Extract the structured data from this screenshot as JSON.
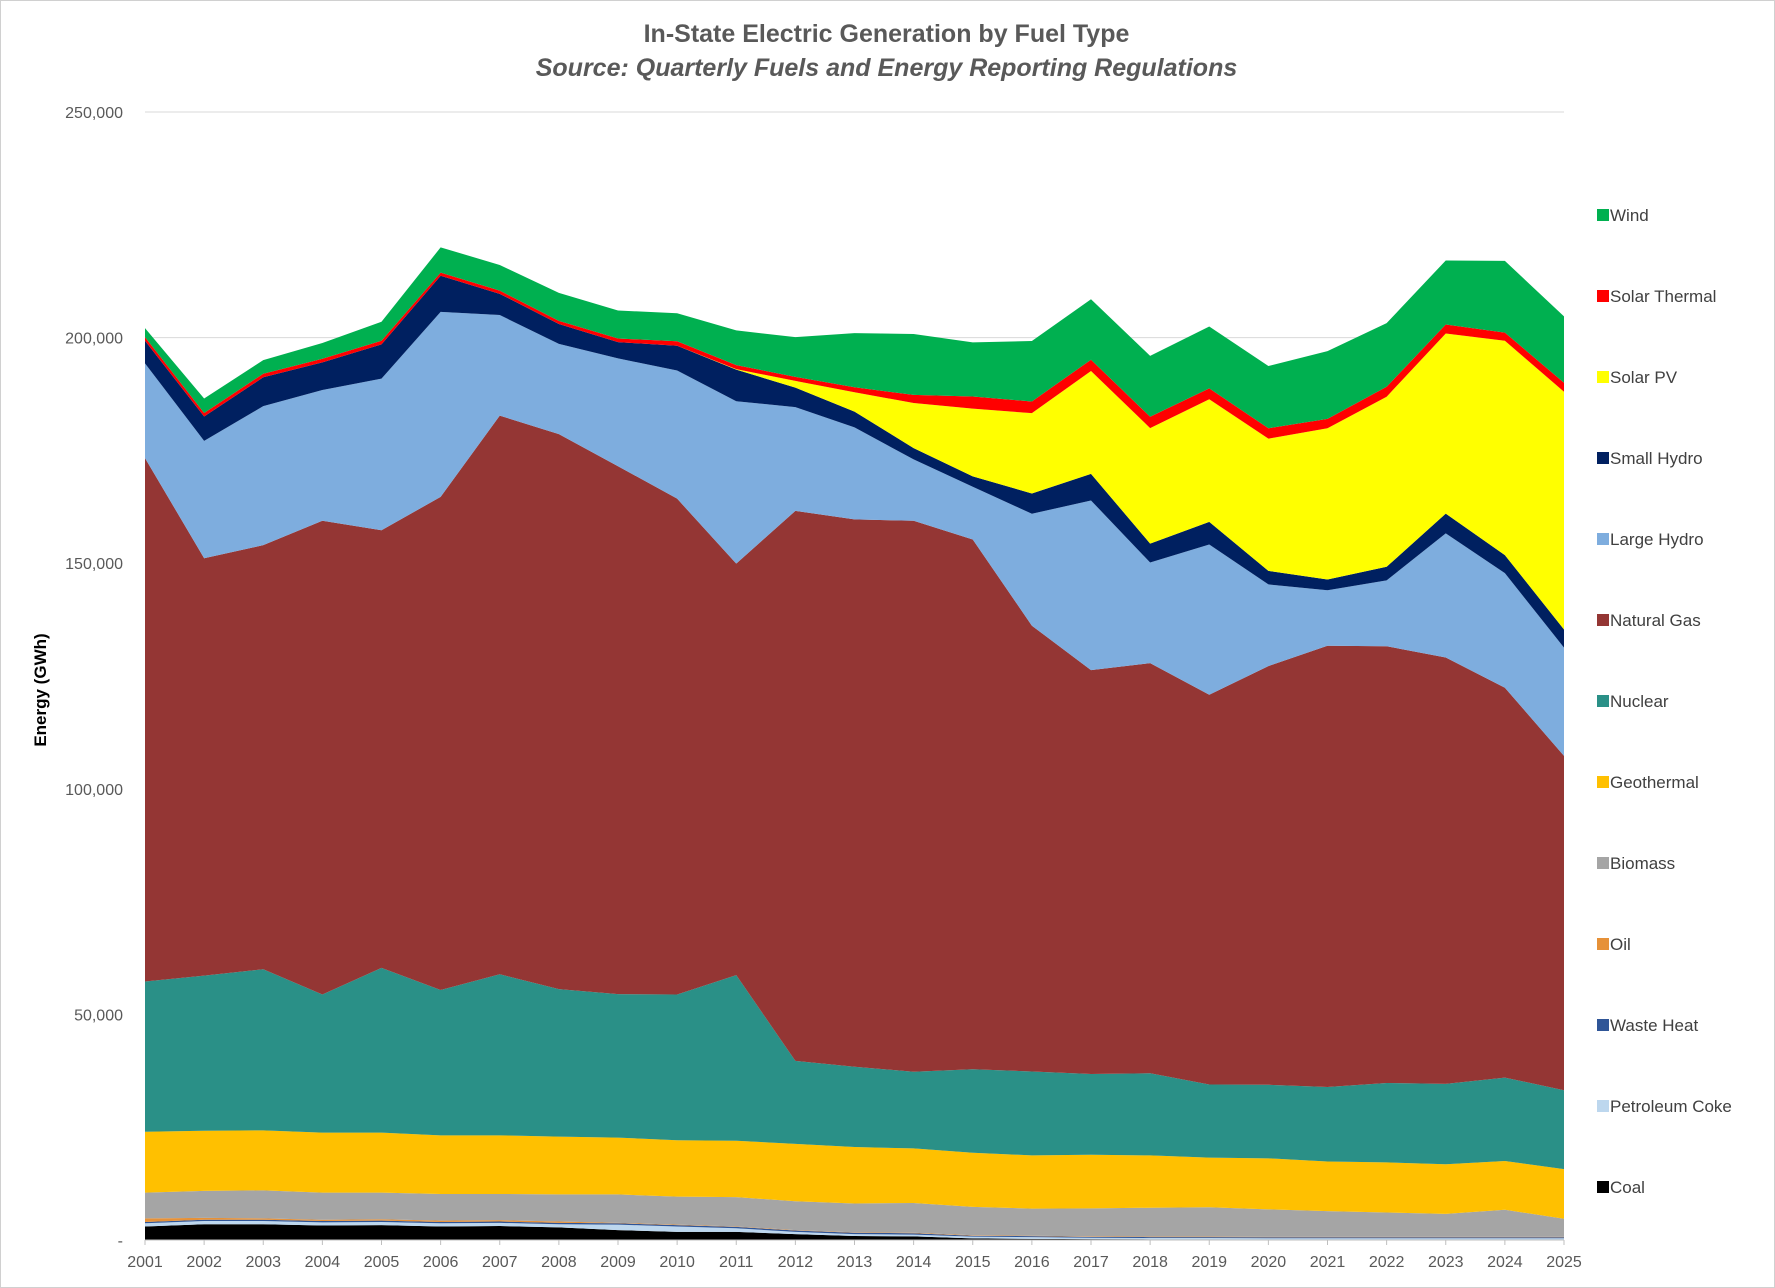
{
  "chart_data": {
    "type": "area",
    "stacked": true,
    "title": "In-State Electric Generation by Fuel Type",
    "subtitle": "Source: Quarterly Fuels and Energy Reporting Regulations",
    "xlabel": "",
    "ylabel": "Energy (GWh)",
    "ylim": [
      0,
      250000
    ],
    "yticks": [
      0,
      50000,
      100000,
      150000,
      200000,
      250000
    ],
    "ytick_labels": [
      "-",
      "50,000",
      "100,000",
      "150,000",
      "200,000",
      "250,000"
    ],
    "grid": true,
    "legend_position": "right",
    "categories": [
      "2001",
      "2002",
      "2003",
      "2004",
      "2005",
      "2006",
      "2007",
      "2008",
      "2009",
      "2010",
      "2011",
      "2012",
      "2013",
      "2014",
      "2015",
      "2016",
      "2017",
      "2018",
      "2019",
      "2020",
      "2021",
      "2022",
      "2023",
      "2024",
      "2025"
    ],
    "series": [
      {
        "name": "Coal",
        "color": "#000000",
        "values": [
          3000,
          3500,
          3500,
          3200,
          3300,
          3000,
          3100,
          2800,
          2200,
          1800,
          1800,
          1300,
          900,
          800,
          350,
          250,
          200,
          150,
          150,
          100,
          100,
          100,
          100,
          100,
          100
        ]
      },
      {
        "name": "Petroleum Coke",
        "color": "#bdd7ee",
        "values": [
          700,
          700,
          700,
          700,
          700,
          700,
          700,
          700,
          1200,
          1200,
          800,
          500,
          400,
          400,
          400,
          400,
          300,
          300,
          300,
          300,
          300,
          300,
          300,
          300,
          300
        ]
      },
      {
        "name": "Waste Heat",
        "color": "#2f5597",
        "values": [
          300,
          300,
          300,
          300,
          300,
          300,
          300,
          300,
          300,
          300,
          300,
          300,
          300,
          300,
          200,
          200,
          200,
          200,
          200,
          200,
          200,
          200,
          200,
          200,
          200
        ]
      },
      {
        "name": "Oil",
        "color": "#e69138",
        "values": [
          800,
          400,
          300,
          300,
          300,
          300,
          300,
          300,
          100,
          100,
          100,
          100,
          100,
          100,
          100,
          100,
          100,
          100,
          100,
          100,
          100,
          100,
          100,
          100,
          100
        ]
      },
      {
        "name": "Biomass",
        "color": "#a5a5a5",
        "values": [
          5700,
          6000,
          6200,
          6000,
          5900,
          5900,
          5800,
          6000,
          6300,
          6200,
          6500,
          6400,
          6400,
          6600,
          6300,
          6000,
          6200,
          6400,
          6500,
          6100,
          5700,
          5400,
          5100,
          6000,
          4000
        ]
      },
      {
        "name": "Geothermal",
        "color": "#ffc000",
        "values": [
          13500,
          13300,
          13300,
          13300,
          13300,
          13000,
          13000,
          12800,
          12600,
          12500,
          12500,
          12700,
          12500,
          12100,
          12000,
          11800,
          11900,
          11600,
          11000,
          11300,
          11000,
          11100,
          11000,
          10800,
          11000
        ]
      },
      {
        "name": "Nuclear",
        "color": "#2a9087",
        "values": [
          33300,
          34400,
          35700,
          30600,
          36500,
          32200,
          35700,
          32700,
          31800,
          32300,
          36700,
          18400,
          17800,
          17000,
          18500,
          18600,
          17900,
          18200,
          16200,
          16300,
          16500,
          17600,
          17800,
          18500,
          17500
        ]
      },
      {
        "name": "Natural Gas",
        "color": "#943634",
        "values": [
          116000,
          92500,
          94000,
          105000,
          97000,
          109300,
          123800,
          123000,
          117000,
          109900,
          91200,
          121900,
          121300,
          122100,
          117400,
          98800,
          89500,
          90900,
          86400,
          92800,
          97800,
          96800,
          94500,
          86400,
          74100
        ]
      },
      {
        "name": "Large Hydro",
        "color": "#7eadde",
        "values": [
          21000,
          26000,
          30800,
          29000,
          33600,
          41000,
          22300,
          20000,
          23900,
          28400,
          36000,
          23000,
          20400,
          13600,
          11700,
          24800,
          37600,
          22300,
          33300,
          18100,
          12300,
          14600,
          27500,
          25400,
          24000
        ]
      },
      {
        "name": "Small Hydro",
        "color": "#002060",
        "values": [
          5000,
          5400,
          6400,
          6100,
          7600,
          8000,
          4700,
          4400,
          3600,
          5500,
          7000,
          4300,
          3500,
          2500,
          2300,
          4500,
          5900,
          4200,
          5000,
          3000,
          2400,
          3000,
          4400,
          4000,
          4000
        ]
      },
      {
        "name": "Solar PV",
        "color": "#ffff00",
        "values": [
          0,
          0,
          0,
          0,
          0,
          0,
          0,
          0,
          0,
          0,
          100,
          1500,
          4300,
          10000,
          15000,
          17800,
          22800,
          25600,
          27200,
          29300,
          33500,
          37700,
          39900,
          47500,
          52700
        ]
      },
      {
        "name": "Solar Thermal",
        "color": "#ff0000",
        "values": [
          800,
          800,
          800,
          800,
          800,
          700,
          700,
          700,
          800,
          1000,
          900,
          900,
          1100,
          1800,
          2700,
          2600,
          2500,
          2500,
          2400,
          2300,
          2100,
          2200,
          2000,
          1800,
          2000
        ]
      },
      {
        "name": "Wind",
        "color": "#00b050",
        "values": [
          2000,
          3200,
          3000,
          3500,
          4200,
          5600,
          5700,
          6200,
          6200,
          6200,
          7700,
          8800,
          12000,
          13500,
          12000,
          13400,
          13400,
          13500,
          13700,
          13800,
          15000,
          14100,
          14200,
          15900,
          14700
        ]
      }
    ]
  }
}
